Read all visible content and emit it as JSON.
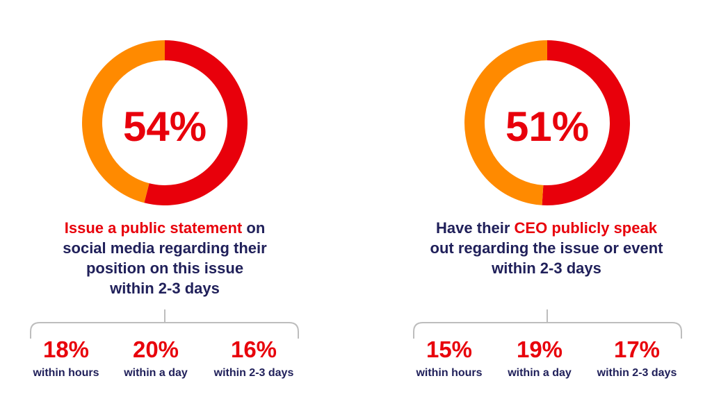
{
  "colors": {
    "red": "#e8000b",
    "orange": "#ff8a00",
    "navy": "#20205a",
    "bracket": "#bdbdbd"
  },
  "chart_data": [
    {
      "type": "pie",
      "variant": "donut",
      "center_label": "54%",
      "values": [
        54,
        46
      ],
      "segment_colors": [
        "#e8000b",
        "#ff8a00"
      ],
      "headline": {
        "highlight": "Issue a public statement",
        "line1_rest": " on",
        "line2": "social media regarding their",
        "line3": "position on this issue",
        "line4": "within 2-3 days"
      },
      "breakdown": [
        {
          "value": "18%",
          "label": "within hours"
        },
        {
          "value": "20%",
          "label": "within a day"
        },
        {
          "value": "16%",
          "label": "within 2-3 days"
        }
      ]
    },
    {
      "type": "pie",
      "variant": "donut",
      "center_label": "51%",
      "values": [
        51,
        49
      ],
      "segment_colors": [
        "#e8000b",
        "#ff8a00"
      ],
      "headline": {
        "line1_start": "Have their ",
        "highlight": "CEO publicly speak",
        "line2": "out regarding the issue or event",
        "line3": "within 2-3 days"
      },
      "breakdown": [
        {
          "value": "15%",
          "label": "within hours"
        },
        {
          "value": "19%",
          "label": "within a day"
        },
        {
          "value": "17%",
          "label": "within 2-3 days"
        }
      ]
    }
  ]
}
